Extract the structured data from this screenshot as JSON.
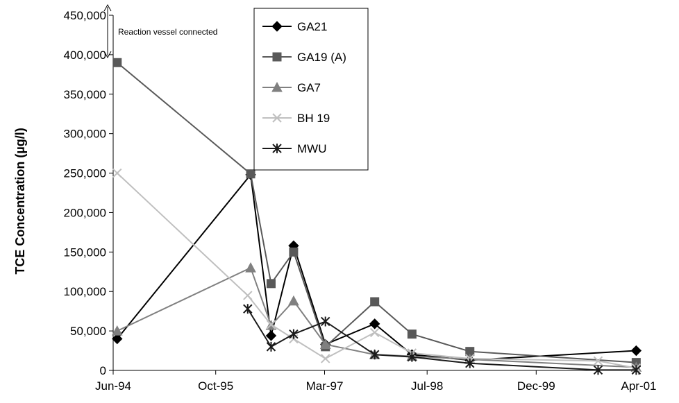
{
  "chart_data": {
    "type": "line",
    "ylabel": "TCE Concentration (µg/l)",
    "xlabel": "",
    "ylim": [
      0,
      450000
    ],
    "ytick_values": [
      0,
      50000,
      100000,
      150000,
      200000,
      250000,
      300000,
      350000,
      400000,
      450000
    ],
    "ytick_labels": [
      "0",
      "50,000",
      "100,000",
      "150,000",
      "200,000",
      "250,000",
      "300,000",
      "350,000",
      "400,000",
      "450,000"
    ],
    "xlim": [
      "1994-06-01",
      "2001-04-01"
    ],
    "xtick_values": [
      "1994-06-01",
      "1995-10-01",
      "1997-03-01",
      "1998-07-01",
      "1999-12-01",
      "2001-04-01"
    ],
    "xtick_labels": [
      "Jun-94",
      "Oct-95",
      "Mar-97",
      "Jul-98",
      "Dec-99",
      "Apr-01"
    ],
    "grid": false,
    "legend_position": "top-center",
    "annotation": {
      "text": "Reaction vessel connected",
      "date": "1994-06-01"
    },
    "series": [
      {
        "name": "GA21",
        "marker": "diamond",
        "color": "#000000",
        "x": [
          "1994-06-20",
          "1996-03-15",
          "1996-06-20",
          "1996-10-05",
          "1997-03-05",
          "1997-10-25",
          "1998-04-20",
          "1999-01-20",
          "2001-03-20"
        ],
        "y": [
          40000,
          248000,
          44000,
          158000,
          33000,
          59000,
          20000,
          13000,
          25000
        ]
      },
      {
        "name": "GA19 (A)",
        "marker": "square",
        "color": "#595959",
        "x": [
          "1994-06-20",
          "1996-03-15",
          "1996-06-20",
          "1996-10-05",
          "1997-03-05",
          "1997-10-25",
          "1998-04-20",
          "1999-01-20",
          "2001-03-20"
        ],
        "y": [
          390000,
          249000,
          110000,
          150000,
          30000,
          87000,
          46000,
          24000,
          10000
        ]
      },
      {
        "name": "GA7",
        "marker": "triangle",
        "color": "#808080",
        "x": [
          "1994-06-20",
          "1996-03-15",
          "1996-06-20",
          "1996-10-05",
          "1997-03-05",
          "1997-10-25",
          "1998-04-20",
          "1999-01-20",
          "2001-03-20"
        ],
        "y": [
          50000,
          130000,
          57000,
          88000,
          33000,
          20000,
          18000,
          14000,
          4000
        ]
      },
      {
        "name": "BH 19",
        "marker": "x",
        "color": "#bfbfbf",
        "x": [
          "1994-06-20",
          "1996-03-01",
          "1996-06-20",
          "1996-10-05",
          "1997-03-05",
          "1997-10-25",
          "1998-04-20",
          "1999-01-20",
          "2000-09-20",
          "2001-03-20"
        ],
        "y": [
          250000,
          95000,
          58000,
          40000,
          15000,
          48000,
          22000,
          15000,
          12000,
          3000
        ]
      },
      {
        "name": "MWU",
        "marker": "star",
        "color": "#1a1a1a",
        "x": [
          "1996-03-01",
          "1996-06-20",
          "1996-10-05",
          "1997-03-05",
          "1997-10-25",
          "1998-04-20",
          "1999-01-20",
          "2000-09-20",
          "2001-03-20"
        ],
        "y": [
          78000,
          30000,
          46000,
          62000,
          20000,
          17000,
          9000,
          500,
          500
        ]
      }
    ]
  }
}
